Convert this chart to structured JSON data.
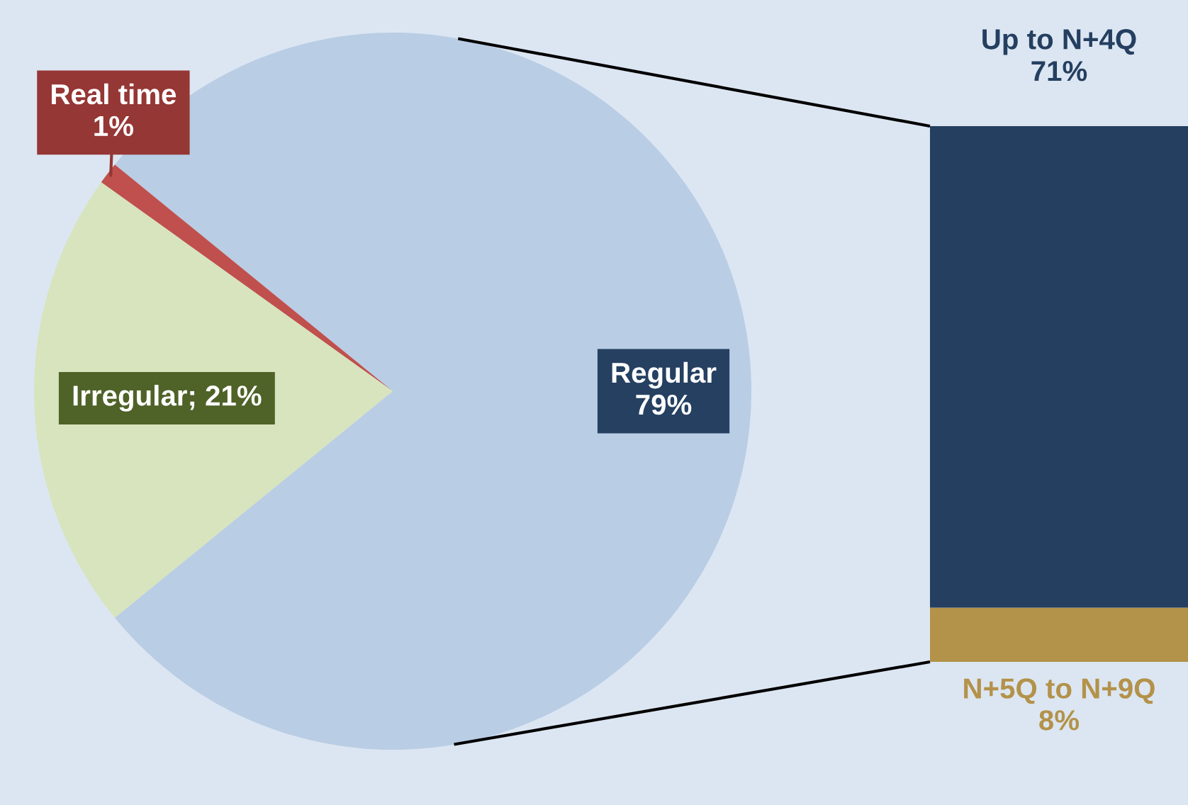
{
  "chart_data": [
    {
      "type": "pie",
      "categories": [
        "Regular",
        "Real time",
        "Irregular"
      ],
      "values": [
        79,
        1,
        21
      ],
      "colors": [
        "#b9cde5",
        "#c0504d",
        "#d7e4bd"
      ],
      "value_labels": [
        "79%",
        "1%",
        "21%"
      ]
    },
    {
      "type": "bar",
      "stacked": true,
      "categories": [
        null
      ],
      "series": [
        {
          "name": "N+5Q to N+9Q",
          "color": "#b3924a",
          "values": [
            8
          ],
          "value_labels": [
            "8%"
          ]
        },
        {
          "name": "Up to N+4Q",
          "color": "#243f60",
          "values": [
            71
          ],
          "value_labels": [
            "71%"
          ]
        }
      ]
    }
  ]
}
